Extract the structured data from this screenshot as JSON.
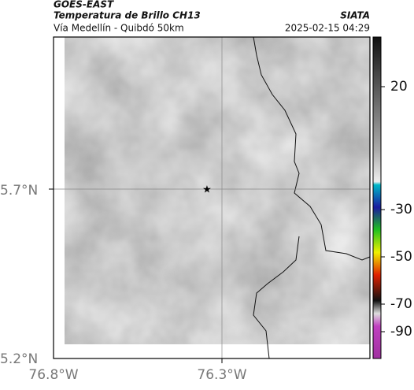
{
  "header": {
    "title": "GOES-EAST",
    "subtitle": "Temperatura de Brillo CH13",
    "route": "Vía Medellín - Quibdó 50km",
    "brand": "SIATA",
    "timestamp": "2025-02-15 04:29"
  },
  "map": {
    "lat_labels": [
      "5.7°N",
      "5.2°N"
    ],
    "lon_labels": [
      "76.8°W",
      "76.3°W"
    ]
  },
  "colorbar": {
    "ticks": [
      20,
      -30,
      -50,
      -70,
      -90
    ]
  }
}
